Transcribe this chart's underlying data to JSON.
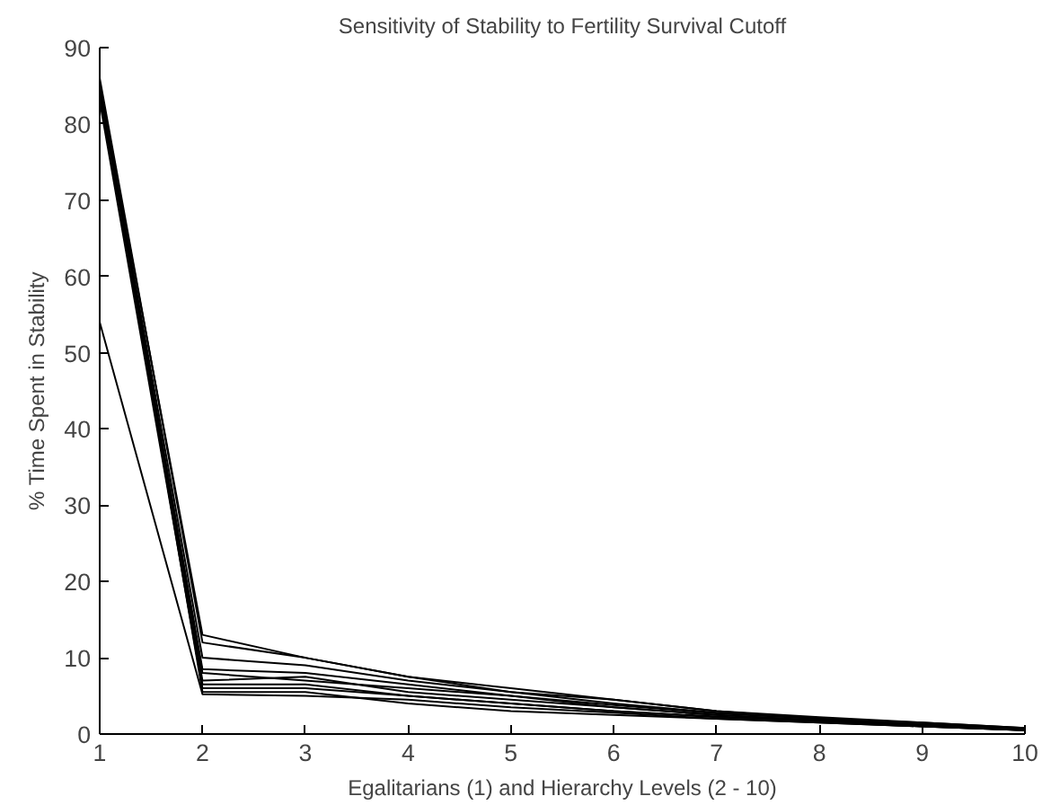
{
  "chart_data": {
    "type": "line",
    "title": "Sensitivity of Stability to Fertility Survival Cutoff",
    "xlabel": "Egalitarians (1) and Hierarchy Levels (2 - 10)",
    "ylabel": "% Time Spent in Stability",
    "x": [
      1,
      2,
      3,
      4,
      5,
      6,
      7,
      8,
      9,
      10
    ],
    "series": [
      {
        "color": "#000000",
        "values": [
          85,
          13,
          10,
          7.5,
          5.5,
          4.5,
          3,
          2.2,
          1.5,
          0.8
        ]
      },
      {
        "color": "#000000",
        "values": [
          86,
          12,
          10,
          7.5,
          6,
          4.5,
          3,
          2,
          1.5,
          0.8
        ]
      },
      {
        "color": "#000000",
        "values": [
          85,
          10,
          9,
          7,
          5.5,
          4,
          2.8,
          2,
          1.3,
          0.7
        ]
      },
      {
        "color": "#000000",
        "values": [
          84,
          8.5,
          8,
          6.5,
          5,
          3.8,
          2.7,
          2,
          1.3,
          0.7
        ]
      },
      {
        "color": "#000000",
        "values": [
          85,
          8,
          7,
          6,
          5,
          3.5,
          2.5,
          1.8,
          1.2,
          0.6
        ]
      },
      {
        "color": "#000000",
        "values": [
          84,
          7,
          7.5,
          5.5,
          4.5,
          3.5,
          2.5,
          1.8,
          1.2,
          0.6
        ]
      },
      {
        "color": "#000000",
        "values": [
          85,
          6.5,
          6.5,
          5,
          4,
          3,
          2.3,
          1.7,
          1.1,
          0.5
        ]
      },
      {
        "color": "#000000",
        "values": [
          83,
          6,
          6,
          5,
          4,
          3,
          2.2,
          1.6,
          1,
          0.5
        ]
      },
      {
        "color": "#000000",
        "values": [
          85,
          5.5,
          5.5,
          4,
          3,
          2.5,
          2,
          1.5,
          1,
          0.5
        ]
      },
      {
        "color": "#000000",
        "values": [
          54,
          5.2,
          5,
          4.5,
          3.5,
          2.8,
          2,
          1.5,
          1,
          0.5
        ]
      }
    ],
    "xlim": [
      1,
      10
    ],
    "xticks": [
      1,
      2,
      3,
      4,
      5,
      6,
      7,
      8,
      9,
      10
    ],
    "ylim": [
      0,
      90
    ],
    "yticks": [
      0,
      10,
      20,
      30,
      40,
      50,
      60,
      70,
      80,
      90
    ],
    "grid": false,
    "marker": "none",
    "line_style": "solid"
  }
}
